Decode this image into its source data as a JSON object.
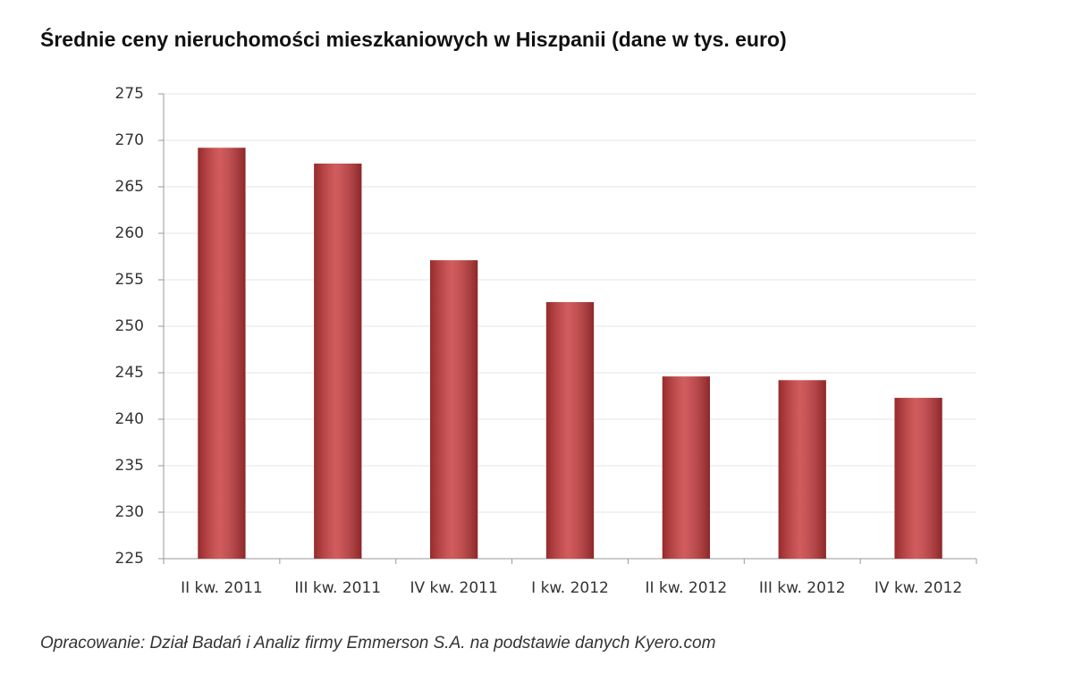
{
  "chart_data": {
    "type": "bar",
    "title": "Średnie ceny nieruchomości mieszkaniowych w Hiszpanii (dane w tys. euro)",
    "source": "Opracowanie:  Dział Badań  i Analiz firmy Emmerson S.A. na podstawie danych Kyero.com",
    "categories": [
      "II kw. 2011",
      "III kw. 2011",
      "IV kw. 2011",
      "I kw. 2012",
      "II kw. 2012",
      "III kw. 2012",
      "IV kw. 2012"
    ],
    "values": [
      269.2,
      267.5,
      257.1,
      252.6,
      244.6,
      244.2,
      242.3
    ],
    "color": "#c8383a",
    "ylim": [
      225,
      275
    ],
    "yticks": [
      225,
      230,
      235,
      240,
      245,
      250,
      255,
      260,
      265,
      270,
      275
    ],
    "grid": true
  }
}
